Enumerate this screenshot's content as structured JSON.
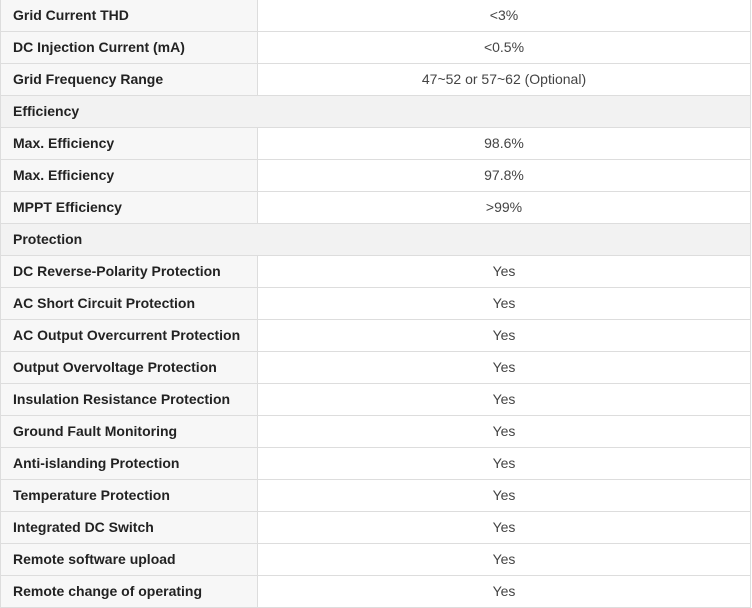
{
  "rows": [
    {
      "kind": "row",
      "label": "Grid Current THD",
      "value": "<3%"
    },
    {
      "kind": "row",
      "label": "DC Injection Current (mA)",
      "value": "<0.5%"
    },
    {
      "kind": "row",
      "label": "Grid Frequency Range",
      "value": "47~52 or 57~62 (Optional)"
    },
    {
      "kind": "section",
      "label": "Efficiency"
    },
    {
      "kind": "row",
      "label": "Max. Efficiency",
      "value": "98.6%"
    },
    {
      "kind": "row",
      "label": "Max. Efficiency",
      "value": "97.8%"
    },
    {
      "kind": "row",
      "label": "MPPT Efficiency",
      "value": ">99%"
    },
    {
      "kind": "section",
      "label": "Protection"
    },
    {
      "kind": "row",
      "label": "DC Reverse-Polarity Protection",
      "value": "Yes"
    },
    {
      "kind": "row",
      "label": "AC Short Circuit Protection",
      "value": "Yes"
    },
    {
      "kind": "row",
      "label": "AC Output Overcurrent Protection",
      "value": "Yes"
    },
    {
      "kind": "row",
      "label": "Output Overvoltage Protection",
      "value": "Yes"
    },
    {
      "kind": "row",
      "label": "Insulation Resistance Protection",
      "value": "Yes"
    },
    {
      "kind": "row",
      "label": "Ground Fault Monitoring",
      "value": "Yes"
    },
    {
      "kind": "row",
      "label": "Anti-islanding Protection",
      "value": "Yes"
    },
    {
      "kind": "row",
      "label": "Temperature Protection",
      "value": "Yes"
    },
    {
      "kind": "row",
      "label": "Integrated DC Switch",
      "value": "Yes"
    },
    {
      "kind": "row",
      "label": "Remote software upload",
      "value": "Yes"
    },
    {
      "kind": "row",
      "label": "Remote change of operating",
      "value": "Yes"
    }
  ]
}
